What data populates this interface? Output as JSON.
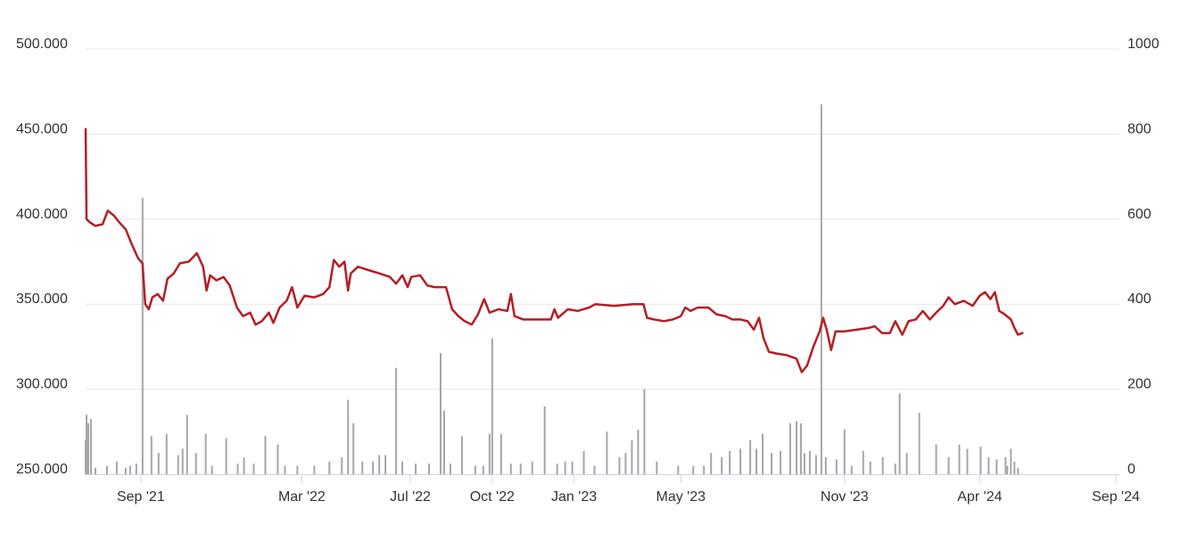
{
  "chart_data": {
    "type": "line",
    "title": "",
    "xlabel": "",
    "ylabel": "",
    "grid": true,
    "legend": "none",
    "colors": {
      "price": "#b41f24",
      "volume": "#a6a6a6",
      "grid": "#e6e6e6",
      "text": "#333333",
      "tick": "#ccd6eb"
    },
    "y_left": {
      "ticks": [
        "500.000",
        "450.000",
        "400.000",
        "350.000",
        "300.000",
        "250.000"
      ],
      "ylim": [
        250000,
        500000
      ]
    },
    "y_right": {
      "ticks": [
        "1000",
        "800",
        "600",
        "400",
        "200",
        "0"
      ],
      "ylim": [
        0,
        1000
      ]
    },
    "x_ticks": [
      {
        "label": "Sep '21",
        "date": "2021-09-01"
      },
      {
        "label": "Mar '22",
        "date": "2022-03-01"
      },
      {
        "label": "Jul '22",
        "date": "2022-07-01"
      },
      {
        "label": "Oct '22",
        "date": "2022-10-01"
      },
      {
        "label": "Jan '23",
        "date": "2023-01-01"
      },
      {
        "label": "May '23",
        "date": "2023-05-01"
      },
      {
        "label": "Nov '23",
        "date": "2023-11-01"
      },
      {
        "label": "Apr '24",
        "date": "2024-04-01"
      },
      {
        "label": "Sep '24",
        "date": "2024-09-01"
      }
    ],
    "xlim": [
      "2021-07-01",
      "2024-09-05"
    ],
    "series": [
      {
        "axis": "left",
        "points": [
          [
            "2021-07-01",
            453000
          ],
          [
            "2021-07-02",
            400000
          ],
          [
            "2021-07-06",
            398000
          ],
          [
            "2021-07-12",
            396000
          ],
          [
            "2021-07-20",
            397000
          ],
          [
            "2021-07-26",
            405000
          ],
          [
            "2021-08-02",
            402000
          ],
          [
            "2021-08-08",
            398000
          ],
          [
            "2021-08-15",
            394000
          ],
          [
            "2021-08-22",
            385000
          ],
          [
            "2021-08-29",
            377000
          ],
          [
            "2021-09-03",
            374000
          ],
          [
            "2021-09-06",
            350000
          ],
          [
            "2021-09-10",
            347000
          ],
          [
            "2021-09-14",
            354000
          ],
          [
            "2021-09-20",
            356000
          ],
          [
            "2021-09-26",
            352000
          ],
          [
            "2021-10-01",
            365000
          ],
          [
            "2021-10-08",
            368000
          ],
          [
            "2021-10-15",
            374000
          ],
          [
            "2021-10-25",
            375000
          ],
          [
            "2021-11-03",
            380000
          ],
          [
            "2021-11-10",
            372000
          ],
          [
            "2021-11-14",
            358000
          ],
          [
            "2021-11-18",
            367000
          ],
          [
            "2021-11-25",
            364000
          ],
          [
            "2021-12-03",
            366000
          ],
          [
            "2021-12-10",
            361000
          ],
          [
            "2021-12-18",
            348000
          ],
          [
            "2021-12-25",
            343000
          ],
          [
            "2022-01-02",
            345000
          ],
          [
            "2022-01-08",
            338000
          ],
          [
            "2022-01-15",
            340000
          ],
          [
            "2022-01-23",
            345000
          ],
          [
            "2022-01-28",
            339000
          ],
          [
            "2022-02-04",
            348000
          ],
          [
            "2022-02-12",
            352000
          ],
          [
            "2022-02-18",
            360000
          ],
          [
            "2022-02-24",
            348000
          ],
          [
            "2022-03-04",
            355000
          ],
          [
            "2022-03-15",
            354000
          ],
          [
            "2022-03-25",
            356000
          ],
          [
            "2022-04-01",
            360000
          ],
          [
            "2022-04-06",
            376000
          ],
          [
            "2022-04-12",
            372000
          ],
          [
            "2022-04-18",
            375000
          ],
          [
            "2022-04-22",
            358000
          ],
          [
            "2022-04-25",
            368000
          ],
          [
            "2022-05-03",
            372000
          ],
          [
            "2022-05-15",
            370000
          ],
          [
            "2022-05-28",
            368000
          ],
          [
            "2022-06-08",
            366000
          ],
          [
            "2022-06-15",
            362000
          ],
          [
            "2022-06-22",
            367000
          ],
          [
            "2022-06-28",
            360000
          ],
          [
            "2022-07-02",
            366000
          ],
          [
            "2022-07-12",
            367000
          ],
          [
            "2022-07-20",
            361000
          ],
          [
            "2022-07-28",
            360000
          ],
          [
            "2022-08-10",
            360000
          ],
          [
            "2022-08-17",
            347000
          ],
          [
            "2022-08-24",
            343000
          ],
          [
            "2022-08-31",
            340000
          ],
          [
            "2022-09-08",
            338000
          ],
          [
            "2022-09-15",
            344000
          ],
          [
            "2022-09-22",
            353000
          ],
          [
            "2022-09-28",
            345000
          ],
          [
            "2022-10-08",
            347000
          ],
          [
            "2022-10-18",
            346000
          ],
          [
            "2022-10-22",
            356000
          ],
          [
            "2022-10-26",
            343000
          ],
          [
            "2022-11-05",
            341000
          ],
          [
            "2022-11-22",
            341000
          ],
          [
            "2022-12-06",
            341000
          ],
          [
            "2022-12-10",
            347000
          ],
          [
            "2022-12-14",
            342000
          ],
          [
            "2022-12-25",
            347000
          ],
          [
            "2023-01-05",
            346000
          ],
          [
            "2023-01-18",
            348000
          ],
          [
            "2023-01-25",
            350000
          ],
          [
            "2023-02-15",
            349000
          ],
          [
            "2023-03-08",
            350000
          ],
          [
            "2023-03-20",
            350000
          ],
          [
            "2023-03-24",
            342000
          ],
          [
            "2023-04-01",
            341000
          ],
          [
            "2023-04-12",
            340000
          ],
          [
            "2023-04-22",
            341000
          ],
          [
            "2023-05-01",
            343000
          ],
          [
            "2023-05-06",
            348000
          ],
          [
            "2023-05-12",
            346000
          ],
          [
            "2023-05-20",
            348000
          ],
          [
            "2023-06-01",
            348000
          ],
          [
            "2023-06-10",
            344000
          ],
          [
            "2023-06-20",
            343000
          ],
          [
            "2023-06-28",
            341000
          ],
          [
            "2023-07-07",
            341000
          ],
          [
            "2023-07-15",
            340000
          ],
          [
            "2023-07-22",
            335000
          ],
          [
            "2023-07-28",
            342000
          ],
          [
            "2023-08-02",
            330000
          ],
          [
            "2023-08-08",
            322000
          ],
          [
            "2023-08-16",
            321000
          ],
          [
            "2023-08-28",
            320000
          ],
          [
            "2023-09-08",
            318000
          ],
          [
            "2023-09-14",
            310000
          ],
          [
            "2023-09-20",
            314000
          ],
          [
            "2023-09-27",
            325000
          ],
          [
            "2023-10-04",
            334000
          ],
          [
            "2023-10-08",
            342000
          ],
          [
            "2023-10-12",
            335000
          ],
          [
            "2023-10-17",
            323000
          ],
          [
            "2023-10-22",
            334000
          ],
          [
            "2023-11-01",
            334000
          ],
          [
            "2023-11-15",
            335000
          ],
          [
            "2023-11-28",
            336000
          ],
          [
            "2023-12-05",
            337000
          ],
          [
            "2023-12-13",
            333000
          ],
          [
            "2023-12-22",
            333000
          ],
          [
            "2023-12-28",
            340000
          ],
          [
            "2024-01-05",
            332000
          ],
          [
            "2024-01-12",
            340000
          ],
          [
            "2024-01-20",
            341000
          ],
          [
            "2024-01-28",
            346000
          ],
          [
            "2024-02-05",
            341000
          ],
          [
            "2024-02-12",
            345000
          ],
          [
            "2024-02-20",
            349000
          ],
          [
            "2024-02-26",
            354000
          ],
          [
            "2024-03-04",
            350000
          ],
          [
            "2024-03-14",
            352000
          ],
          [
            "2024-03-24",
            349000
          ],
          [
            "2024-04-01",
            355000
          ],
          [
            "2024-04-07",
            357000
          ],
          [
            "2024-04-13",
            353000
          ],
          [
            "2024-04-18",
            357000
          ],
          [
            "2024-04-23",
            346000
          ],
          [
            "2024-04-29",
            344000
          ],
          [
            "2024-05-06",
            341000
          ],
          [
            "2024-05-10",
            336000
          ],
          [
            "2024-05-14",
            332000
          ],
          [
            "2024-05-19",
            333000
          ]
        ]
      },
      {
        "type": "bar",
        "axis": "right",
        "points": [
          [
            "2021-07-01",
            80
          ],
          [
            "2021-07-02",
            140
          ],
          [
            "2021-07-04",
            120
          ],
          [
            "2021-07-07",
            130
          ],
          [
            "2021-07-12",
            15
          ],
          [
            "2021-07-25",
            20
          ],
          [
            "2021-08-05",
            30
          ],
          [
            "2021-08-15",
            15
          ],
          [
            "2021-08-20",
            20
          ],
          [
            "2021-08-27",
            25
          ],
          [
            "2021-09-03",
            650
          ],
          [
            "2021-09-13",
            90
          ],
          [
            "2021-09-21",
            50
          ],
          [
            "2021-09-30",
            95
          ],
          [
            "2021-10-13",
            45
          ],
          [
            "2021-10-18",
            60
          ],
          [
            "2021-10-23",
            140
          ],
          [
            "2021-11-02",
            50
          ],
          [
            "2021-11-13",
            95
          ],
          [
            "2021-11-20",
            20
          ],
          [
            "2021-12-06",
            85
          ],
          [
            "2021-12-19",
            25
          ],
          [
            "2021-12-26",
            40
          ],
          [
            "2022-01-06",
            25
          ],
          [
            "2022-01-19",
            90
          ],
          [
            "2022-02-02",
            70
          ],
          [
            "2022-02-10",
            20
          ],
          [
            "2022-02-24",
            20
          ],
          [
            "2022-03-15",
            20
          ],
          [
            "2022-04-01",
            30
          ],
          [
            "2022-04-15",
            40
          ],
          [
            "2022-04-22",
            175
          ],
          [
            "2022-04-28",
            120
          ],
          [
            "2022-05-08",
            30
          ],
          [
            "2022-05-20",
            30
          ],
          [
            "2022-05-27",
            45
          ],
          [
            "2022-06-03",
            45
          ],
          [
            "2022-06-15",
            250
          ],
          [
            "2022-06-22",
            30
          ],
          [
            "2022-07-07",
            25
          ],
          [
            "2022-07-22",
            25
          ],
          [
            "2022-08-04",
            285
          ],
          [
            "2022-08-08",
            150
          ],
          [
            "2022-08-15",
            25
          ],
          [
            "2022-08-28",
            90
          ],
          [
            "2022-09-12",
            20
          ],
          [
            "2022-09-21",
            20
          ],
          [
            "2022-09-28",
            95
          ],
          [
            "2022-10-01",
            320
          ],
          [
            "2022-10-11",
            95
          ],
          [
            "2022-10-22",
            25
          ],
          [
            "2022-11-02",
            25
          ],
          [
            "2022-11-15",
            30
          ],
          [
            "2022-11-29",
            160
          ],
          [
            "2022-12-13",
            25
          ],
          [
            "2022-12-22",
            30
          ],
          [
            "2022-12-30",
            30
          ],
          [
            "2023-01-12",
            55
          ],
          [
            "2023-01-24",
            20
          ],
          [
            "2023-02-07",
            100
          ],
          [
            "2023-02-21",
            40
          ],
          [
            "2023-02-28",
            50
          ],
          [
            "2023-03-07",
            80
          ],
          [
            "2023-03-14",
            105
          ],
          [
            "2023-03-21",
            200
          ],
          [
            "2023-04-04",
            30
          ],
          [
            "2023-04-28",
            20
          ],
          [
            "2023-05-15",
            20
          ],
          [
            "2023-05-27",
            20
          ],
          [
            "2023-06-04",
            50
          ],
          [
            "2023-06-16",
            40
          ],
          [
            "2023-06-25",
            55
          ],
          [
            "2023-07-07",
            60
          ],
          [
            "2023-07-18",
            80
          ],
          [
            "2023-07-25",
            60
          ],
          [
            "2023-08-01",
            95
          ],
          [
            "2023-08-11",
            50
          ],
          [
            "2023-08-21",
            55
          ],
          [
            "2023-09-01",
            120
          ],
          [
            "2023-09-08",
            125
          ],
          [
            "2023-09-13",
            120
          ],
          [
            "2023-09-17",
            50
          ],
          [
            "2023-09-23",
            55
          ],
          [
            "2023-09-30",
            45
          ],
          [
            "2023-10-06",
            870
          ],
          [
            "2023-10-11",
            40
          ],
          [
            "2023-10-23",
            35
          ],
          [
            "2023-11-01",
            105
          ],
          [
            "2023-11-09",
            20
          ],
          [
            "2023-11-22",
            55
          ],
          [
            "2023-11-30",
            30
          ],
          [
            "2023-12-14",
            40
          ],
          [
            "2023-12-28",
            25
          ],
          [
            "2024-01-02",
            190
          ],
          [
            "2024-01-10",
            50
          ],
          [
            "2024-01-24",
            145
          ],
          [
            "2024-02-12",
            70
          ],
          [
            "2024-02-26",
            40
          ],
          [
            "2024-03-09",
            70
          ],
          [
            "2024-03-18",
            60
          ],
          [
            "2024-04-02",
            65
          ],
          [
            "2024-04-11",
            40
          ],
          [
            "2024-04-20",
            35
          ],
          [
            "2024-04-30",
            40
          ],
          [
            "2024-05-02",
            20
          ],
          [
            "2024-05-06",
            60
          ],
          [
            "2024-05-10",
            30
          ],
          [
            "2024-05-14",
            15
          ]
        ]
      }
    ]
  }
}
